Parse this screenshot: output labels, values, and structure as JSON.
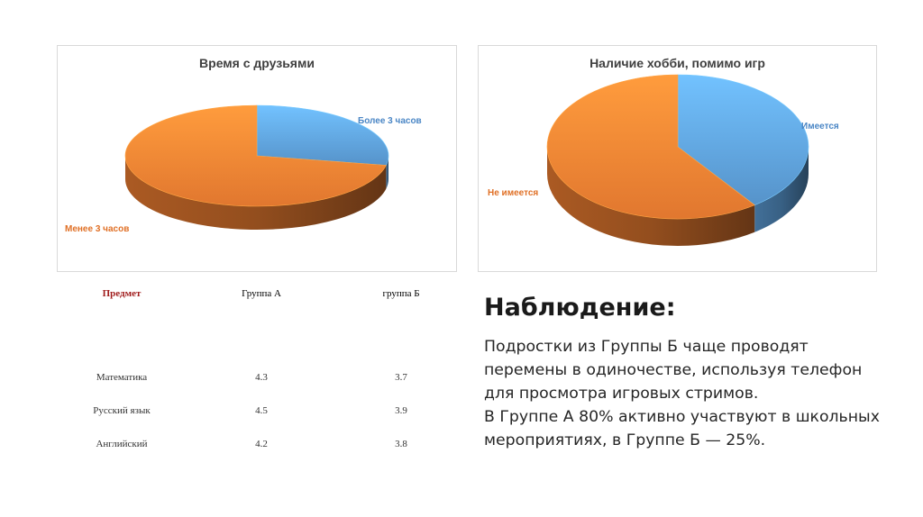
{
  "chart_data": [
    {
      "type": "pie",
      "title": "Время с друзьями",
      "labels": [
        "Более 3 часов",
        "Менее 3 часов"
      ],
      "values": [
        28,
        72
      ],
      "colors": [
        "#5b9bd5",
        "#ed7d31"
      ],
      "style": "3d"
    },
    {
      "type": "pie",
      "title": "Наличие хобби, помимо игр",
      "labels": [
        "Имеется",
        "Не имеется"
      ],
      "values": [
        40,
        60
      ],
      "colors": [
        "#5b9bd5",
        "#ed7d31"
      ],
      "style": "3d"
    }
  ],
  "table": {
    "headers": [
      "Предмет",
      "Группа А",
      "группа Б"
    ],
    "rows": [
      [
        "Математика",
        "4.3",
        "3.7"
      ],
      [
        "Русский язык",
        "4.5",
        "3.9"
      ],
      [
        "Английский",
        "4.2",
        "3.8"
      ]
    ]
  },
  "observation": {
    "heading": "Наблюдение:",
    "lines": [
      "Подростки из Группы Б чаще проводят",
      "перемены в одиночестве, используя телефон",
      "для просмотра игровых стримов.",
      "В Группе А 80% активно участвуют в школьных",
      "мероприятиях, в Группе Б — 25%."
    ]
  }
}
